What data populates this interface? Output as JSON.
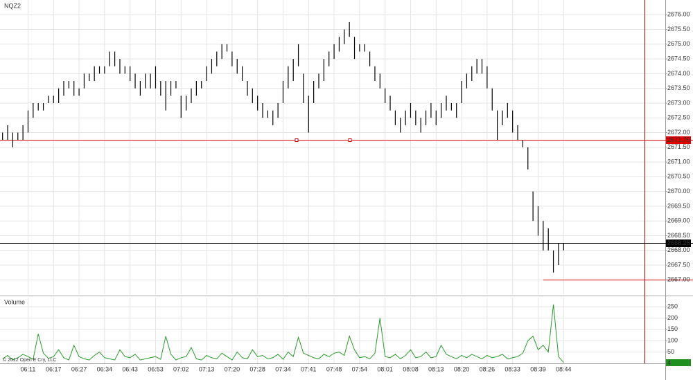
{
  "chart_data": [
    {
      "type": "hilo",
      "title": "NQZ2",
      "color": "#000000",
      "categories": [
        null,
        null,
        null,
        null,
        null,
        "06:11",
        null,
        null,
        null,
        null,
        "06:17",
        null,
        null,
        null,
        null,
        "06:27",
        null,
        null,
        null,
        null,
        "06:34",
        null,
        null,
        null,
        null,
        "06:43",
        null,
        null,
        null,
        null,
        "06:53",
        null,
        null,
        null,
        null,
        "07:02",
        null,
        null,
        null,
        null,
        "07:13",
        null,
        null,
        null,
        null,
        "07:20",
        null,
        null,
        null,
        null,
        "07:28",
        null,
        null,
        null,
        null,
        "07:34",
        null,
        null,
        null,
        null,
        "07:41",
        null,
        null,
        null,
        null,
        "07:48",
        null,
        null,
        null,
        null,
        "07:54",
        null,
        null,
        null,
        null,
        "08:01",
        null,
        null,
        null,
        null,
        "08:08",
        null,
        null,
        null,
        null,
        "08:13",
        null,
        null,
        null,
        null,
        "08:20",
        null,
        null,
        null,
        null,
        "08:26",
        null,
        null,
        null,
        null,
        "08:33",
        null,
        null,
        null,
        null,
        "08:39",
        null,
        null,
        null,
        null,
        "08:44"
      ],
      "low": [
        2671.75,
        2671.75,
        2671.5,
        2671.75,
        2671.75,
        2672.0,
        2672.5,
        2672.75,
        2672.75,
        2673.0,
        2673.0,
        2673.0,
        2673.25,
        2673.5,
        2673.25,
        2673.25,
        2673.5,
        2673.75,
        2673.75,
        2674.0,
        2674.0,
        2674.25,
        2674.25,
        2674.0,
        2674.0,
        2673.75,
        2673.5,
        2673.25,
        2673.5,
        2673.5,
        2673.5,
        2673.25,
        2672.75,
        2673.25,
        2673.5,
        2672.5,
        2672.75,
        2673.0,
        2673.25,
        2673.5,
        2673.75,
        2674.0,
        2674.25,
        2674.5,
        2674.75,
        2674.25,
        2674.0,
        2673.75,
        2673.25,
        2673.0,
        2672.75,
        2672.5,
        2672.5,
        2672.25,
        2672.5,
        2673.0,
        2673.5,
        2673.75,
        2674.25,
        2673.0,
        2672.0,
        2673.0,
        2673.5,
        2673.75,
        2674.25,
        2674.5,
        2674.75,
        2675.0,
        2675.25,
        2674.5,
        2674.75,
        2674.75,
        2674.25,
        2673.75,
        2673.5,
        2673.0,
        2672.75,
        2672.25,
        2672.0,
        2672.25,
        2672.5,
        2672.25,
        2672.0,
        2672.25,
        2672.5,
        2672.25,
        2672.5,
        2672.75,
        2672.75,
        2672.5,
        2673.0,
        2673.5,
        2673.75,
        2674.0,
        2674.0,
        2673.5,
        2672.75,
        2671.75,
        2672.25,
        2672.5,
        2672.0,
        2671.75,
        2671.5,
        2670.75,
        2669.0,
        2668.5,
        2668.0,
        2668.0,
        2667.25,
        2667.5,
        2668.0
      ],
      "high": [
        2672.0,
        2672.25,
        2672.0,
        2672.0,
        2672.25,
        2672.75,
        2673.0,
        2673.0,
        2673.0,
        2673.25,
        2673.25,
        2673.5,
        2673.75,
        2673.75,
        2673.75,
        2673.5,
        2674.0,
        2674.0,
        2674.25,
        2674.25,
        2674.25,
        2674.75,
        2674.75,
        2674.5,
        2674.25,
        2674.25,
        2674.0,
        2673.75,
        2674.0,
        2674.0,
        2674.25,
        2673.75,
        2673.75,
        2673.75,
        2673.75,
        2673.25,
        2673.25,
        2673.5,
        2673.75,
        2673.75,
        2674.25,
        2674.5,
        2674.75,
        2675.0,
        2675.0,
        2674.75,
        2674.5,
        2674.25,
        2673.75,
        2673.5,
        2673.25,
        2673.0,
        2672.75,
        2672.75,
        2673.0,
        2673.75,
        2674.25,
        2674.5,
        2675.0,
        2674.0,
        2673.25,
        2673.75,
        2674.0,
        2674.5,
        2674.75,
        2675.0,
        2675.25,
        2675.5,
        2675.75,
        2675.25,
        2675.0,
        2675.0,
        2674.75,
        2674.25,
        2674.0,
        2673.5,
        2673.25,
        2672.75,
        2672.5,
        2672.75,
        2673.0,
        2672.75,
        2672.5,
        2672.75,
        2673.0,
        2672.75,
        2673.0,
        2673.25,
        2673.0,
        2673.0,
        2673.75,
        2674.0,
        2674.25,
        2674.5,
        2674.5,
        2674.25,
        2673.5,
        2672.75,
        2672.75,
        2673.0,
        2672.75,
        2672.25,
        2671.75,
        2671.5,
        2670.0,
        2669.5,
        2669.0,
        2668.75,
        2668.0,
        2668.25,
        2668.25
      ],
      "ylim": [
        2666.5,
        2676.5
      ],
      "yticks": [
        {
          "value": 2667,
          "label": "2667.00"
        },
        {
          "value": 2667.5,
          "label": "2667.50"
        },
        {
          "value": 2668,
          "label": "2668.00"
        },
        {
          "value": 2668.5,
          "label": "2668.50"
        },
        {
          "value": 2669,
          "label": "2669.00"
        },
        {
          "value": 2669.5,
          "label": "2669.50"
        },
        {
          "value": 2670,
          "label": "2670.00"
        },
        {
          "value": 2670.5,
          "label": "2670.50"
        },
        {
          "value": 2671,
          "label": "2671.00"
        },
        {
          "value": 2671.5,
          "label": "2671.50"
        },
        {
          "value": 2672,
          "label": "2672.00"
        },
        {
          "value": 2672.5,
          "label": "2672.50"
        },
        {
          "value": 2673,
          "label": "2673.00"
        },
        {
          "value": 2673.5,
          "label": "2673.50"
        },
        {
          "value": 2674,
          "label": "2674.00"
        },
        {
          "value": 2674.5,
          "label": "2674.50"
        },
        {
          "value": 2675,
          "label": "2675.00"
        },
        {
          "value": 2675.5,
          "label": "2675.50"
        },
        {
          "value": 2676,
          "label": "2676.00"
        }
      ],
      "grid": true,
      "lines": [
        {
          "value": 2671.75,
          "label": "2671.75",
          "color": "#e00000"
        },
        {
          "value": 2668.25,
          "label": "2668.25",
          "color": "#000000"
        },
        {
          "value": 2667,
          "color": "#e00000",
          "start": 106
        }
      ]
    },
    {
      "type": "line",
      "title": "Volume",
      "color": "#2a9a2a",
      "values": [
        20,
        35,
        15,
        25,
        40,
        30,
        18,
        130,
        45,
        22,
        30,
        60,
        25,
        15,
        80,
        30,
        20,
        15,
        35,
        50,
        25,
        20,
        15,
        60,
        30,
        25,
        40,
        15,
        20,
        25,
        30,
        18,
        120,
        40,
        15,
        25,
        30,
        70,
        20,
        15,
        35,
        25,
        20,
        45,
        30,
        15,
        50,
        25,
        20,
        60,
        30,
        35,
        20,
        25,
        40,
        18,
        50,
        30,
        115,
        45,
        35,
        25,
        20,
        40,
        30,
        45,
        50,
        35,
        120,
        60,
        25,
        30,
        20,
        45,
        200,
        30,
        25,
        40,
        20,
        35,
        60,
        25,
        30,
        50,
        25,
        30,
        80,
        40,
        30,
        20,
        35,
        25,
        40,
        30,
        20,
        35,
        25,
        30,
        40,
        20,
        25,
        30,
        45,
        100,
        120,
        60,
        80,
        50,
        260,
        30,
        4
      ],
      "ylim": [
        0,
        290
      ],
      "yticks": [
        50,
        100,
        150,
        200,
        250
      ],
      "grid": true
    }
  ],
  "footer": "© 2012 Open E Cry, LLC"
}
